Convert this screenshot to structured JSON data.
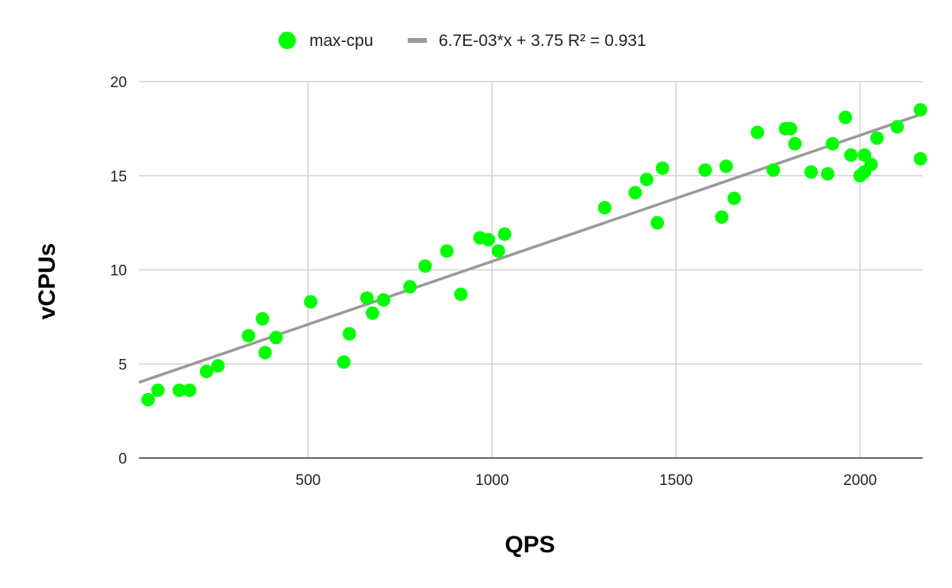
{
  "chart_data": {
    "type": "scatter",
    "xlabel": "QPS",
    "ylabel": "vCPUs",
    "xlim": [
      40,
      2170
    ],
    "ylim": [
      0,
      20
    ],
    "x_ticks": [
      500,
      1000,
      1500,
      2000
    ],
    "y_ticks": [
      0,
      5,
      10,
      15,
      20
    ],
    "grid": true,
    "legend_position": "top",
    "series": [
      {
        "name": "max-cpu",
        "color": "#00ff00",
        "points": [
          [
            65,
            3.1
          ],
          [
            92,
            3.6
          ],
          [
            150,
            3.6
          ],
          [
            178,
            3.6
          ],
          [
            224,
            4.6
          ],
          [
            255,
            4.9
          ],
          [
            338,
            6.5
          ],
          [
            376,
            7.4
          ],
          [
            383,
            5.6
          ],
          [
            413,
            6.4
          ],
          [
            507,
            8.3
          ],
          [
            597,
            5.1
          ],
          [
            612,
            6.6
          ],
          [
            660,
            8.5
          ],
          [
            675,
            7.7
          ],
          [
            705,
            8.4
          ],
          [
            777,
            9.1
          ],
          [
            818,
            10.2
          ],
          [
            877,
            11.0
          ],
          [
            915,
            8.7
          ],
          [
            967,
            11.7
          ],
          [
            990,
            11.6
          ],
          [
            1017,
            11.0
          ],
          [
            1034,
            11.9
          ],
          [
            1306,
            13.3
          ],
          [
            1389,
            14.1
          ],
          [
            1420,
            14.8
          ],
          [
            1449,
            12.5
          ],
          [
            1463,
            15.4
          ],
          [
            1579,
            15.3
          ],
          [
            1624,
            12.8
          ],
          [
            1636,
            15.5
          ],
          [
            1658,
            13.8
          ],
          [
            1721,
            17.3
          ],
          [
            1764,
            15.3
          ],
          [
            1797,
            17.5
          ],
          [
            1811,
            17.5
          ],
          [
            1823,
            16.7
          ],
          [
            1867,
            15.2
          ],
          [
            1912,
            15.1
          ],
          [
            1925,
            16.7
          ],
          [
            1960,
            18.1
          ],
          [
            1975,
            16.1
          ],
          [
            2000,
            15.0
          ],
          [
            2012,
            15.2
          ],
          [
            2012,
            16.1
          ],
          [
            2030,
            15.6
          ],
          [
            2046,
            17.0
          ],
          [
            2101,
            17.6
          ],
          [
            2164,
            18.5
          ],
          [
            2164,
            15.9
          ]
        ]
      }
    ],
    "trendline": {
      "label": "6.7E-03*x + 3.75 R² = 0.931",
      "color": "#999999",
      "slope": 0.0067,
      "intercept": 3.75
    }
  }
}
